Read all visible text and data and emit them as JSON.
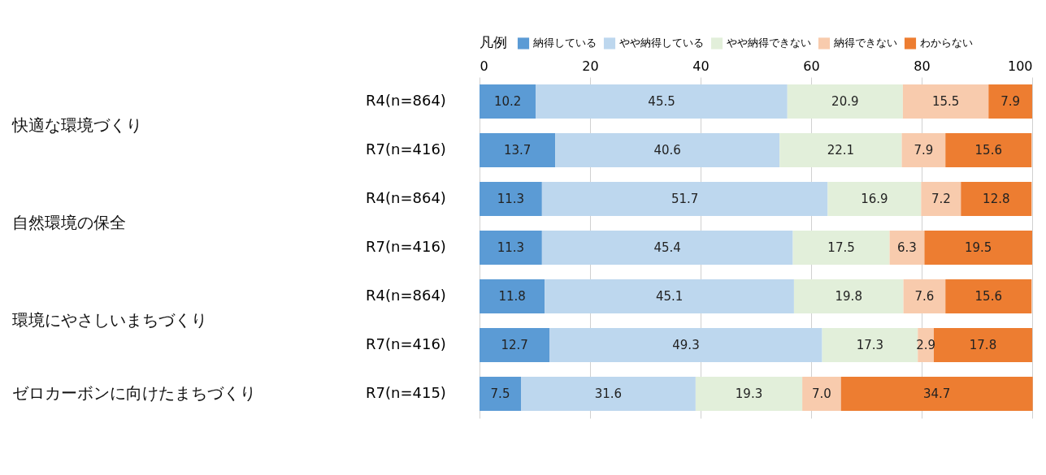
{
  "chart_data": {
    "type": "bar",
    "orientation": "horizontal",
    "stacked": true,
    "legend_title": "凡例",
    "legend": "top",
    "grid": "x",
    "categories": [
      "R4(n=864)",
      "R7(n=416)",
      "R4(n=864)",
      "R7(n=416)",
      "R4(n=864)",
      "R7(n=416)",
      "R7(n=415)"
    ],
    "annotations": [
      "快適な環境づくり",
      "自然環境の保全",
      "環境にやさしいまちづくり",
      "ゼロカーボンに向けたまちづくり"
    ],
    "xlim": [
      0,
      100
    ],
    "xticks": [
      0,
      20,
      40,
      60,
      80,
      100
    ],
    "series": [
      {
        "name": "納得している",
        "color": "#5b9bd5",
        "values": [
          10.2,
          13.7,
          11.3,
          11.3,
          11.8,
          12.7,
          7.5
        ],
        "value_labels": [
          "10.2",
          "13.7",
          "11.3",
          "11.3",
          "11.8",
          "12.7",
          "7.5"
        ]
      },
      {
        "name": "やや納得している",
        "color": "#bdd7ee",
        "values": [
          45.5,
          40.6,
          51.7,
          45.4,
          45.1,
          49.3,
          31.6
        ],
        "value_labels": [
          "45.5",
          "40.6",
          "51.7",
          "45.4",
          "45.1",
          "49.3",
          "31.6"
        ]
      },
      {
        "name": "やや納得できない",
        "color": "#e2efda",
        "values": [
          20.9,
          22.1,
          16.9,
          17.5,
          19.8,
          17.3,
          19.3
        ],
        "value_labels": [
          "20.9",
          "22.1",
          "16.9",
          "17.5",
          "19.8",
          "17.3",
          "19.3"
        ]
      },
      {
        "name": "納得できない",
        "color": "#f8cbad",
        "values": [
          15.5,
          7.9,
          7.2,
          6.3,
          7.6,
          2.9,
          7.0
        ],
        "value_labels": [
          "15.5",
          "7.9",
          "7.2",
          "6.3",
          "7.6",
          "2.9",
          "7.0"
        ]
      },
      {
        "name": "わからない",
        "color": "#ed7d31",
        "values": [
          7.9,
          15.6,
          12.8,
          19.5,
          15.6,
          17.8,
          34.7
        ],
        "value_labels": [
          "7.9",
          "15.6",
          "12.8",
          "19.5",
          "15.6",
          "17.8",
          "34.7"
        ]
      }
    ]
  }
}
